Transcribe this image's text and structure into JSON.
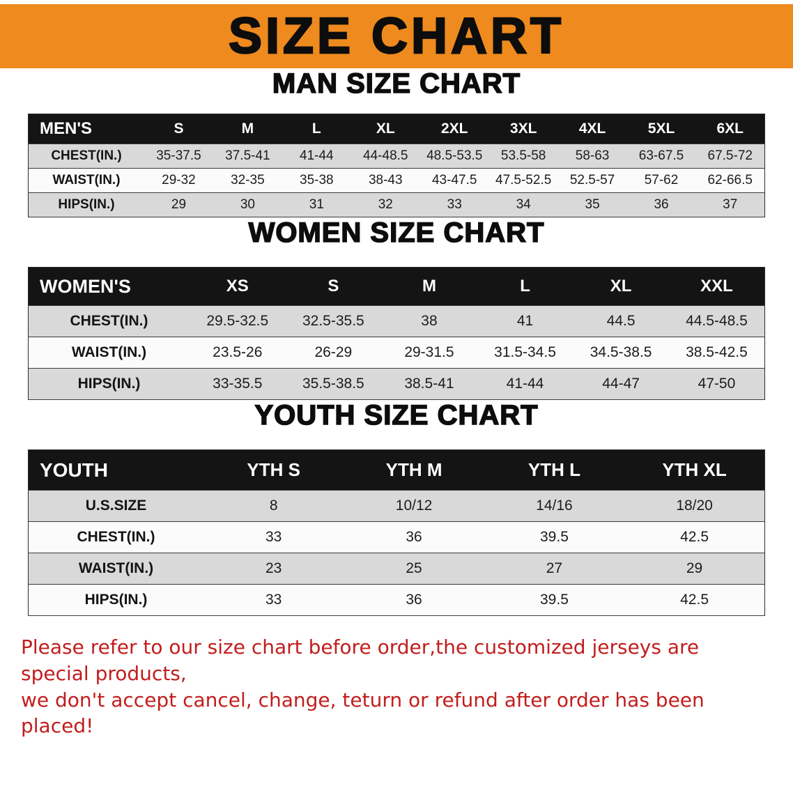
{
  "banner": {
    "title": "SIZE CHART",
    "bg_color": "#ee8a1e",
    "text_color": "#0d0d0d"
  },
  "sections": [
    {
      "id": "men",
      "heading": "MAN SIZE CHART",
      "table": {
        "header": [
          "MEN'S",
          "S",
          "M",
          "L",
          "XL",
          "2XL",
          "3XL",
          "4XL",
          "5XL",
          "6XL"
        ],
        "rows": [
          [
            "CHEST(IN.)",
            "35-37.5",
            "37.5-41",
            "41-44",
            "44-48.5",
            "48.5-53.5",
            "53.5-58",
            "58-63",
            "63-67.5",
            "67.5-72"
          ],
          [
            "WAIST(IN.)",
            "29-32",
            "32-35",
            "35-38",
            "38-43",
            "43-47.5",
            "47.5-52.5",
            "52.5-57",
            "57-62",
            "62-66.5"
          ],
          [
            "HIPS(IN.)",
            "29",
            "30",
            "31",
            "32",
            "33",
            "34",
            "35",
            "36",
            "37"
          ]
        ]
      }
    },
    {
      "id": "women",
      "heading": "WOMEN SIZE CHART",
      "table": {
        "header": [
          "WOMEN'S",
          "XS",
          "S",
          "M",
          "L",
          "XL",
          "XXL"
        ],
        "rows": [
          [
            "CHEST(IN.)",
            "29.5-32.5",
            "32.5-35.5",
            "38",
            "41",
            "44.5",
            "44.5-48.5"
          ],
          [
            "WAIST(IN.)",
            "23.5-26",
            "26-29",
            "29-31.5",
            "31.5-34.5",
            "34.5-38.5",
            "38.5-42.5"
          ],
          [
            "HIPS(IN.)",
            "33-35.5",
            "35.5-38.5",
            "38.5-41",
            "41-44",
            "44-47",
            "47-50"
          ]
        ]
      }
    },
    {
      "id": "youth",
      "heading": "YOUTH SIZE CHART",
      "table": {
        "header": [
          "YOUTH",
          "YTH S",
          "YTH M",
          "YTH L",
          "YTH XL"
        ],
        "rows": [
          [
            "U.S.SIZE",
            "8",
            "10/12",
            "14/16",
            "18/20"
          ],
          [
            "CHEST(IN.)",
            "33",
            "36",
            "39.5",
            "42.5"
          ],
          [
            "WAIST(IN.)",
            "23",
            "25",
            "27",
            "29"
          ],
          [
            "HIPS(IN.)",
            "33",
            "36",
            "39.5",
            "42.5"
          ]
        ]
      }
    }
  ],
  "note": {
    "line1": "Please refer to our size chart before order,the customized jerseys are special products,",
    "line2": "we don't accept cancel, change, teturn or refund after order has been placed!",
    "color": "#c21d1d",
    "gray_row_color": "#d9d9d9",
    "header_row_color": "#141414"
  }
}
